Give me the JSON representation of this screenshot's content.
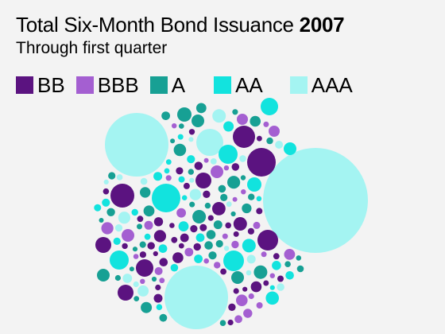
{
  "title": {
    "text": "Total Six-Month Bond Issuance",
    "year": "2007"
  },
  "subtitle": "Through first quarter",
  "legend": [
    {
      "label": "BB",
      "color": "#5b1380"
    },
    {
      "label": "BBB",
      "color": "#a45fd1"
    },
    {
      "label": "A",
      "color": "#17a094"
    },
    {
      "label": "AA",
      "color": "#12e3de"
    },
    {
      "label": "AAA",
      "color": "#a4f4f2"
    }
  ],
  "chart_data": {
    "type": "bubble-pack",
    "categories": [
      "BB",
      "BBB",
      "A",
      "AA",
      "AAA"
    ],
    "colors": {
      "BB": "#5b1380",
      "BBB": "#a45fd1",
      "A": "#17a094",
      "AA": "#12e3de",
      "AAA": "#a4f4f2"
    }
  }
}
